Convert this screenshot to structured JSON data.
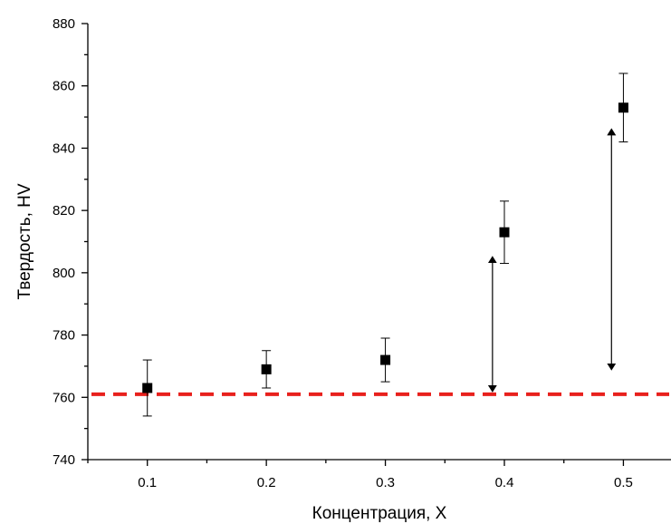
{
  "chart_data": {
    "type": "scatter",
    "xlabel": "Концентрация, X",
    "ylabel": "Твердость, HV",
    "xlim": [
      0.05,
      0.54
    ],
    "ylim": [
      740,
      880
    ],
    "x_ticks": [
      "0.1",
      "0.2",
      "0.3",
      "0.4",
      "0.5"
    ],
    "x_tick_values": [
      0.1,
      0.2,
      0.3,
      0.4,
      0.5
    ],
    "y_ticks": [
      "740",
      "760",
      "780",
      "800",
      "820",
      "840",
      "860",
      "880"
    ],
    "y_tick_values": [
      740,
      760,
      780,
      800,
      820,
      840,
      860,
      880
    ],
    "points": [
      {
        "x": 0.1,
        "y": 763,
        "err_low": 754,
        "err_high": 772
      },
      {
        "x": 0.2,
        "y": 769,
        "err_low": 763,
        "err_high": 775
      },
      {
        "x": 0.3,
        "y": 772,
        "err_low": 765,
        "err_high": 779
      },
      {
        "x": 0.4,
        "y": 813,
        "err_low": 803,
        "err_high": 823
      },
      {
        "x": 0.5,
        "y": 853,
        "err_low": 842,
        "err_high": 864
      }
    ],
    "reference_line": {
      "y": 761,
      "color": "#e8211d",
      "style": "dashed"
    },
    "arrows": [
      {
        "x": 0.39,
        "y_from": 761,
        "y_to": 806
      },
      {
        "x": 0.49,
        "y_from": 768,
        "y_to": 847
      }
    ],
    "marker_color": "#000000",
    "grid": false
  }
}
